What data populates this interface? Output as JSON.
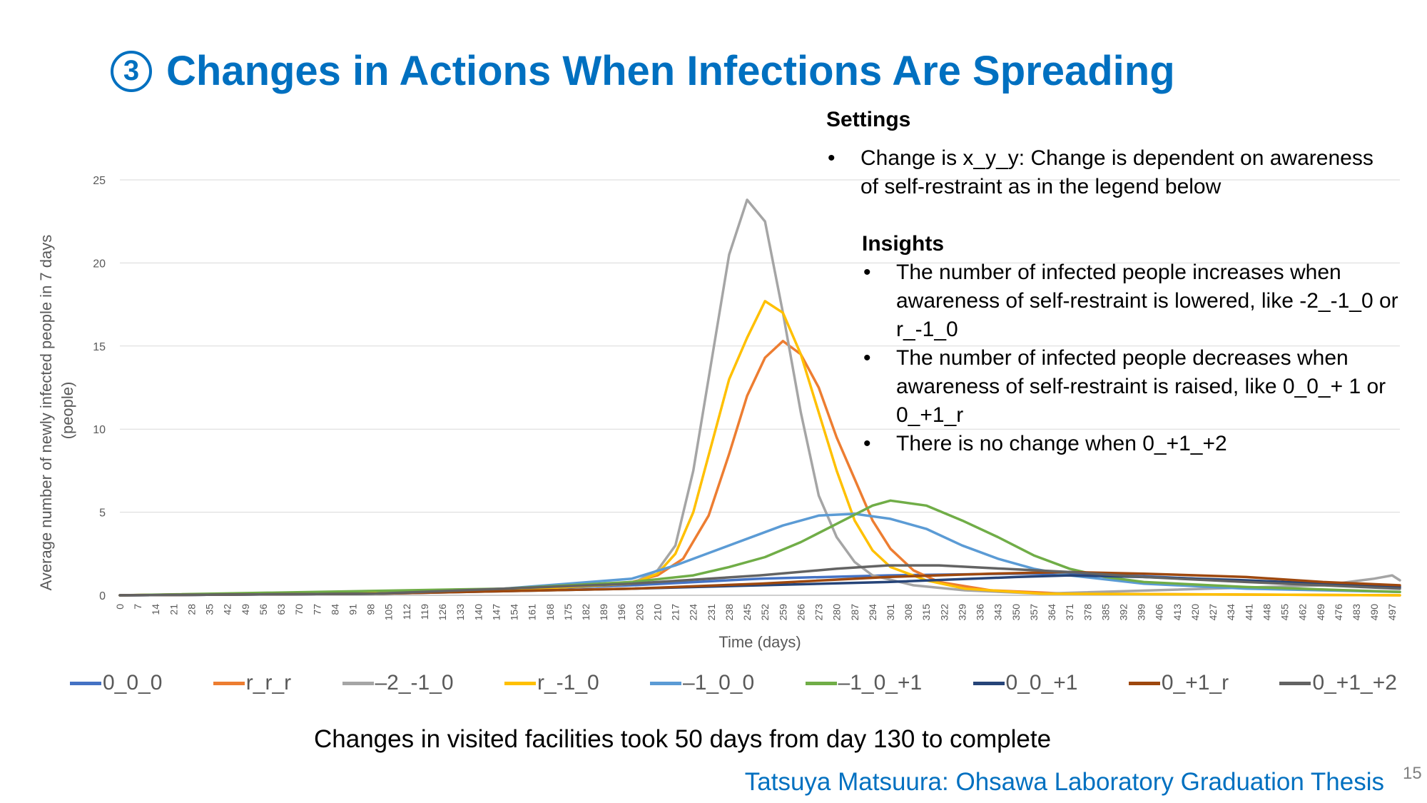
{
  "slide": {
    "title_number": "3",
    "title": "Changes in Actions When Infections Are Spreading",
    "note": "Changes in visited facilities took 50 days from day 130 to complete",
    "footer": "Tatsuya Matsuura: Ohsawa Laboratory Graduation Thesis",
    "page_number": "15"
  },
  "settings": {
    "heading": "Settings",
    "bullets": [
      "Change is x_y_y: Change is dependent on awareness of self-restraint as in the legend below"
    ]
  },
  "insights": {
    "heading": "Insights",
    "bullets": [
      "The number of infected people increases when awareness of self-restraint is lowered, like -2_-1_0 or r_-1_0",
      "The number of infected people decreases when awareness of self-restraint is raised, like 0_0_+ 1 or 0_+1_r",
      "There is no change when 0_+1_+2"
    ]
  },
  "chart_data": {
    "type": "line",
    "xlabel": "Time (days)",
    "ylabel": "Average number of newly infected people in 7 days (people)",
    "ylabel_lines": [
      "Average number of newly infected people in 7 days",
      "(people)"
    ],
    "ylim": [
      0,
      25
    ],
    "yticks": [
      0,
      5,
      10,
      15,
      20,
      25
    ],
    "xlim": [
      0,
      500
    ],
    "xtick_step": 7,
    "grid": true,
    "legend_position": "bottom",
    "series": [
      {
        "name": "0_0_0",
        "color": "#4472C4",
        "points": [
          [
            0,
            0
          ],
          [
            100,
            0.1
          ],
          [
            200,
            0.6
          ],
          [
            250,
            1.0
          ],
          [
            300,
            1.2
          ],
          [
            350,
            1.3
          ],
          [
            380,
            1.3
          ],
          [
            420,
            1.0
          ],
          [
            460,
            0.7
          ],
          [
            500,
            0.5
          ]
        ]
      },
      {
        "name": "r_r_r",
        "color": "#ED7D31",
        "points": [
          [
            0,
            0
          ],
          [
            150,
            0.3
          ],
          [
            200,
            0.8
          ],
          [
            210,
            1.2
          ],
          [
            220,
            2.2
          ],
          [
            230,
            4.8
          ],
          [
            238,
            8.5
          ],
          [
            245,
            12.0
          ],
          [
            252,
            14.3
          ],
          [
            259,
            15.3
          ],
          [
            266,
            14.5
          ],
          [
            273,
            12.5
          ],
          [
            280,
            9.5
          ],
          [
            287,
            7.0
          ],
          [
            294,
            4.5
          ],
          [
            301,
            2.8
          ],
          [
            310,
            1.5
          ],
          [
            320,
            0.8
          ],
          [
            340,
            0.3
          ],
          [
            370,
            0.1
          ],
          [
            500,
            0
          ]
        ]
      },
      {
        "name": "–2_-1_0",
        "color": "#A5A5A5",
        "points": [
          [
            0,
            0
          ],
          [
            150,
            0.3
          ],
          [
            200,
            0.7
          ],
          [
            210,
            1.5
          ],
          [
            217,
            3.0
          ],
          [
            224,
            7.5
          ],
          [
            231,
            14.0
          ],
          [
            238,
            20.5
          ],
          [
            245,
            23.8
          ],
          [
            252,
            22.5
          ],
          [
            259,
            17.0
          ],
          [
            266,
            11.0
          ],
          [
            273,
            6.0
          ],
          [
            280,
            3.5
          ],
          [
            287,
            2.0
          ],
          [
            294,
            1.2
          ],
          [
            310,
            0.6
          ],
          [
            330,
            0.3
          ],
          [
            360,
            0.1
          ],
          [
            470,
            0.6
          ],
          [
            490,
            1.0
          ],
          [
            497,
            1.2
          ],
          [
            500,
            0.9
          ]
        ]
      },
      {
        "name": "r_-1_0",
        "color": "#FFC000",
        "points": [
          [
            0,
            0
          ],
          [
            150,
            0.3
          ],
          [
            200,
            0.7
          ],
          [
            210,
            1.3
          ],
          [
            217,
            2.5
          ],
          [
            224,
            5.0
          ],
          [
            231,
            9.0
          ],
          [
            238,
            13.0
          ],
          [
            245,
            15.5
          ],
          [
            252,
            17.7
          ],
          [
            259,
            17.0
          ],
          [
            266,
            14.5
          ],
          [
            273,
            11.0
          ],
          [
            280,
            7.5
          ],
          [
            287,
            4.5
          ],
          [
            294,
            2.7
          ],
          [
            301,
            1.7
          ],
          [
            315,
            0.9
          ],
          [
            330,
            0.4
          ],
          [
            360,
            0.1
          ],
          [
            500,
            0
          ]
        ]
      },
      {
        "name": "–1_0_0",
        "color": "#5B9BD5",
        "points": [
          [
            0,
            0
          ],
          [
            100,
            0.1
          ],
          [
            150,
            0.4
          ],
          [
            200,
            1.0
          ],
          [
            217,
            1.8
          ],
          [
            231,
            2.6
          ],
          [
            245,
            3.4
          ],
          [
            259,
            4.2
          ],
          [
            273,
            4.8
          ],
          [
            287,
            4.9
          ],
          [
            301,
            4.6
          ],
          [
            315,
            4.0
          ],
          [
            329,
            3.0
          ],
          [
            343,
            2.2
          ],
          [
            357,
            1.6
          ],
          [
            371,
            1.2
          ],
          [
            400,
            0.7
          ],
          [
            440,
            0.4
          ],
          [
            500,
            0.2
          ]
        ]
      },
      {
        "name": "–1_0_+1",
        "color": "#70AD47",
        "points": [
          [
            0,
            0
          ],
          [
            150,
            0.4
          ],
          [
            200,
            0.8
          ],
          [
            224,
            1.2
          ],
          [
            238,
            1.7
          ],
          [
            252,
            2.3
          ],
          [
            266,
            3.2
          ],
          [
            280,
            4.3
          ],
          [
            294,
            5.4
          ],
          [
            301,
            5.7
          ],
          [
            315,
            5.4
          ],
          [
            329,
            4.5
          ],
          [
            343,
            3.5
          ],
          [
            357,
            2.4
          ],
          [
            371,
            1.6
          ],
          [
            385,
            1.1
          ],
          [
            400,
            0.8
          ],
          [
            440,
            0.5
          ],
          [
            500,
            0.2
          ]
        ]
      },
      {
        "name": "0_0_+1",
        "color": "#264478",
        "points": [
          [
            0,
            0
          ],
          [
            100,
            0.1
          ],
          [
            200,
            0.4
          ],
          [
            250,
            0.6
          ],
          [
            300,
            0.8
          ],
          [
            350,
            1.1
          ],
          [
            371,
            1.2
          ],
          [
            400,
            1.1
          ],
          [
            440,
            0.9
          ],
          [
            470,
            0.7
          ],
          [
            500,
            0.5
          ]
        ]
      },
      {
        "name": "0_+1_r",
        "color": "#9E480E",
        "points": [
          [
            0,
            0
          ],
          [
            100,
            0.1
          ],
          [
            200,
            0.4
          ],
          [
            250,
            0.7
          ],
          [
            300,
            1.1
          ],
          [
            340,
            1.3
          ],
          [
            371,
            1.4
          ],
          [
            400,
            1.3
          ],
          [
            440,
            1.1
          ],
          [
            470,
            0.8
          ],
          [
            500,
            0.6
          ]
        ]
      },
      {
        "name": "0_+1_+2",
        "color": "#636363",
        "points": [
          [
            0,
            0
          ],
          [
            100,
            0.1
          ],
          [
            200,
            0.7
          ],
          [
            250,
            1.2
          ],
          [
            280,
            1.6
          ],
          [
            300,
            1.8
          ],
          [
            320,
            1.8
          ],
          [
            345,
            1.6
          ],
          [
            371,
            1.4
          ],
          [
            400,
            1.1
          ],
          [
            440,
            0.8
          ],
          [
            470,
            0.6
          ],
          [
            500,
            0.4
          ]
        ]
      }
    ]
  }
}
